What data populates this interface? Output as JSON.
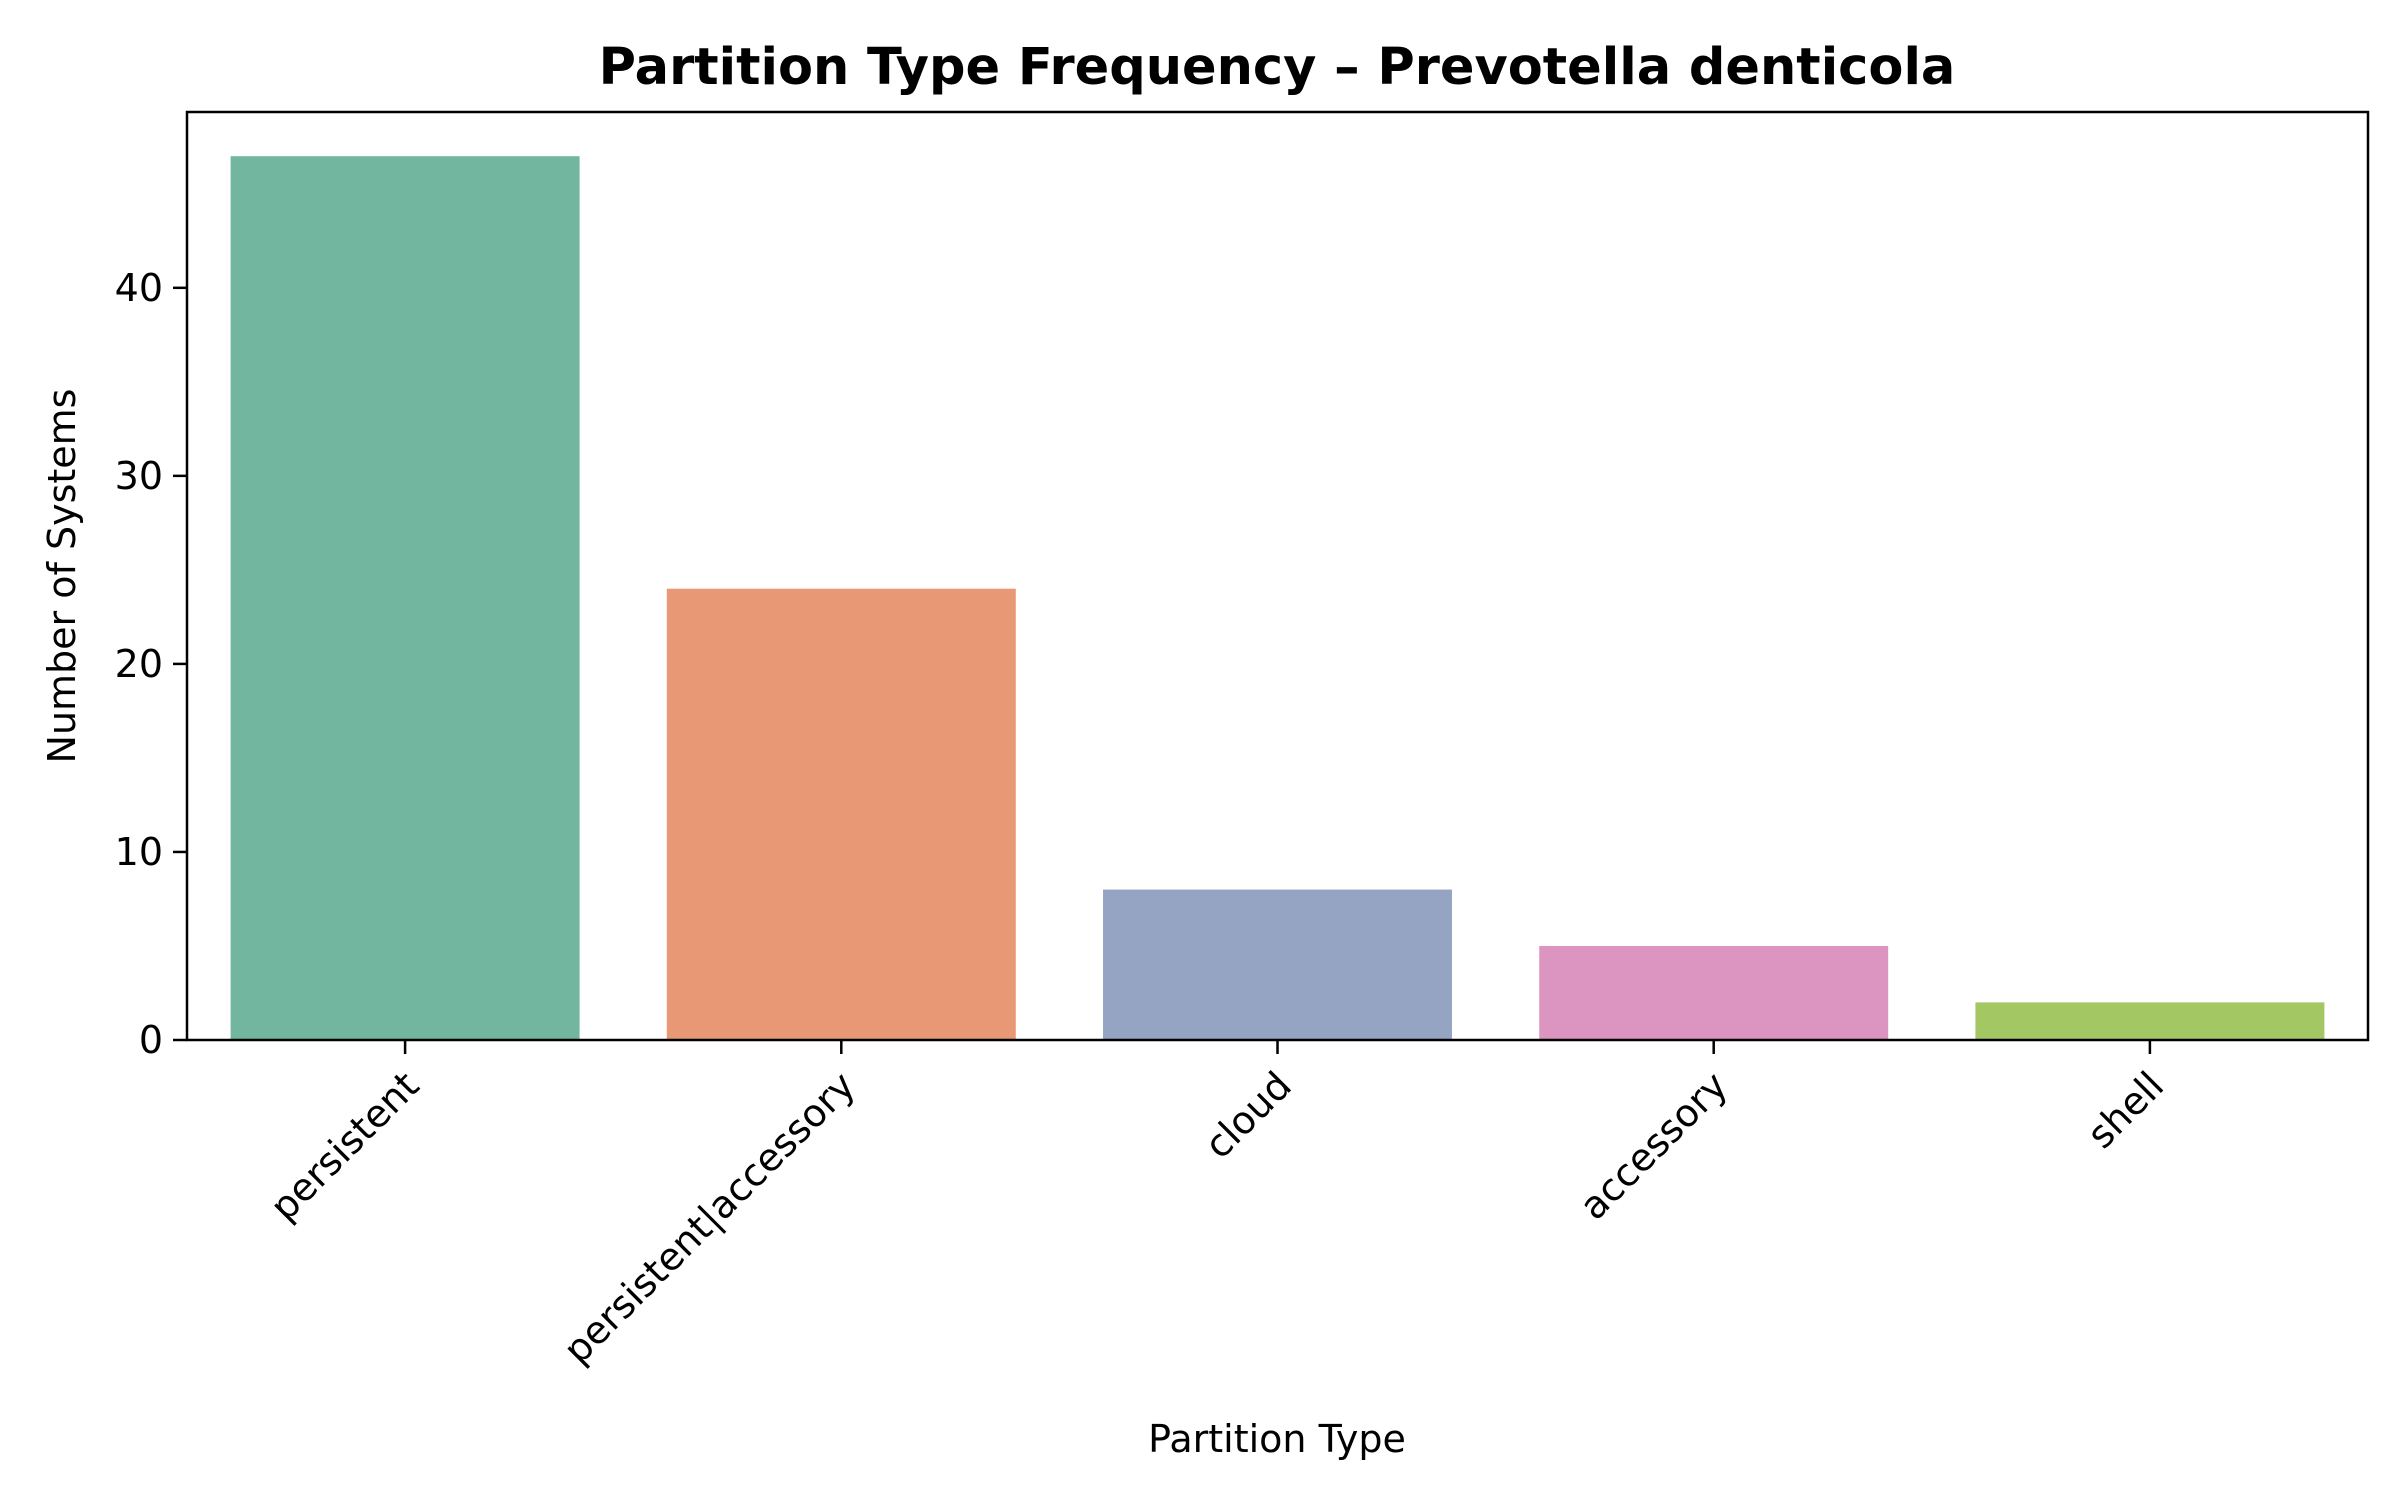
{
  "chart_data": {
    "type": "bar",
    "title": "Partition Type Frequency – Prevotella denticola",
    "xlabel": "Partition Type",
    "ylabel": "Number of Systems",
    "categories": [
      "persistent",
      "persistent|accessory",
      "cloud",
      "accessory",
      "shell"
    ],
    "values": [
      47,
      24,
      8,
      5,
      2
    ],
    "colors": [
      "#72b6a0",
      "#e89875",
      "#94a4c2",
      "#dc95c0",
      "#a2c763"
    ],
    "ylim": [
      0,
      49.35
    ],
    "yticks": [
      0,
      10,
      20,
      30,
      40
    ],
    "grid": false,
    "legend": "none",
    "x_tick_rotation_deg": 45
  }
}
